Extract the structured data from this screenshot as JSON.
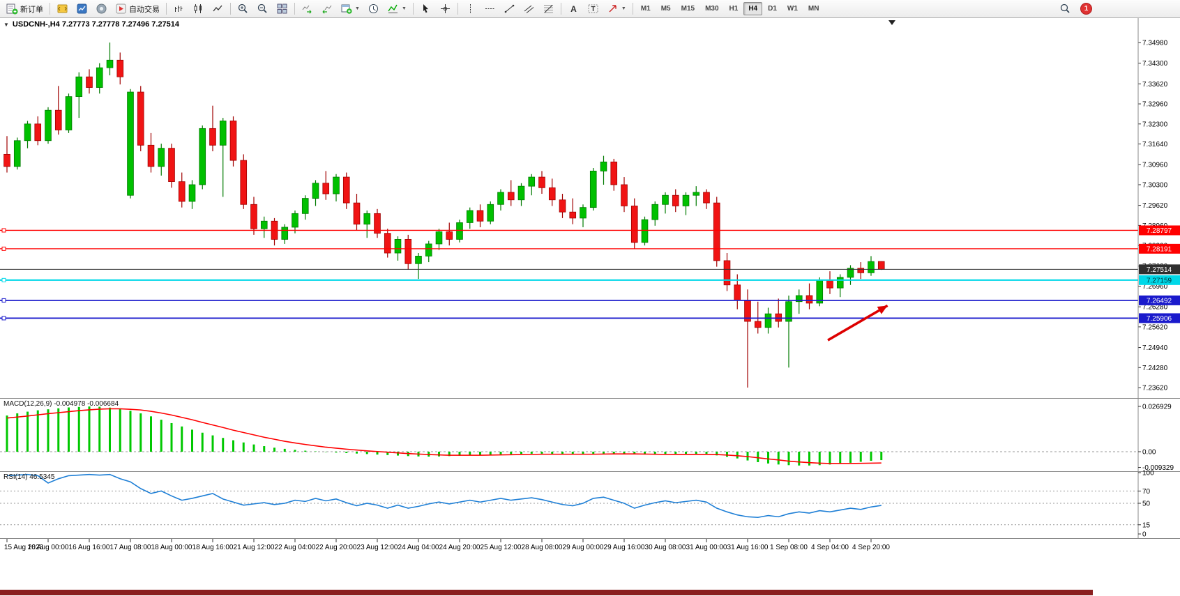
{
  "toolbar": {
    "new_order_label": "新订单",
    "auto_trading_label": "自动交易",
    "periods": [
      "M1",
      "M5",
      "M15",
      "M30",
      "H1",
      "H4",
      "D1",
      "W1",
      "MN"
    ],
    "active_period": "H4",
    "notification_count": "1",
    "icons": [
      "new-order-icon",
      "metaeditor-icon",
      "market-watch-icon",
      "navigator-icon",
      "auto-trading-icon",
      "bar-chart-icon",
      "candlestick-icon",
      "line-chart-icon",
      "zoom-in-icon",
      "zoom-out-icon",
      "tile-windows-icon",
      "auto-scroll-icon",
      "chart-shift-icon",
      "new-chart-icon",
      "clock-icon",
      "indicators-icon",
      "cursor-icon",
      "crosshair-icon",
      "vertical-line-icon",
      "horizontal-line-icon",
      "trendline-icon",
      "channel-icon",
      "fibonacci-icon",
      "text-icon",
      "text-label-icon",
      "arrows-icon",
      "search-icon"
    ]
  },
  "symbol_info": {
    "dropdown_icon": "▼",
    "text": "USDCNH-,H4  7.27773 7.27778 7.27496 7.27514"
  },
  "chart_data": {
    "type": "candlestick",
    "symbol": "USDCNH-",
    "timeframe": "H4",
    "ohlc_display": "7.27773 7.27778 7.27496 7.27514",
    "price_max": 7.356,
    "price_min": 7.233,
    "y_ticks": [
      "7.34980",
      "7.34300",
      "7.33620",
      "7.32960",
      "7.32300",
      "7.31640",
      "7.30960",
      "7.30300",
      "7.29620",
      "7.28960",
      "7.28300",
      "7.27620",
      "7.26960",
      "7.26280",
      "7.25620",
      "7.24940",
      "7.24280",
      "7.23620"
    ],
    "x_labels": [
      "15 Aug 2023",
      "16 Aug 00:00",
      "16 Aug 16:00",
      "17 Aug 08:00",
      "18 Aug 00:00",
      "18 Aug 16:00",
      "21 Aug 12:00",
      "22 Aug 04:00",
      "22 Aug 20:00",
      "23 Aug 12:00",
      "24 Aug 04:00",
      "24 Aug 20:00",
      "25 Aug 12:00",
      "28 Aug 08:00",
      "29 Aug 00:00",
      "29 Aug 16:00",
      "30 Aug 08:00",
      "31 Aug 00:00",
      "31 Aug 16:00",
      "1 Sep 08:00",
      "4 Sep 04:00",
      "4 Sep 20:00"
    ],
    "label_every": 4,
    "colors": {
      "up": "#00C000",
      "up_edge": "#007A00",
      "down": "#F01414",
      "down_edge": "#A00000"
    },
    "candles": [
      [
        7.313,
        7.319,
        7.307,
        7.309
      ],
      [
        7.309,
        7.3185,
        7.308,
        7.3175
      ],
      [
        7.3175,
        7.324,
        7.315,
        7.323
      ],
      [
        7.323,
        7.3255,
        7.316,
        7.3175
      ],
      [
        7.3175,
        7.3285,
        7.3165,
        7.3275
      ],
      [
        7.3275,
        7.3355,
        7.3195,
        7.321
      ],
      [
        7.321,
        7.333,
        7.32,
        7.332
      ],
      [
        7.332,
        7.34,
        7.325,
        7.3385
      ],
      [
        7.3385,
        7.341,
        7.333,
        7.335
      ],
      [
        7.335,
        7.343,
        7.333,
        7.3415
      ],
      [
        7.3415,
        7.3498,
        7.339,
        7.344
      ],
      [
        7.344,
        7.3465,
        7.336,
        7.3385
      ],
      [
        7.2995,
        7.3345,
        7.2985,
        7.3335
      ],
      [
        7.3335,
        7.3355,
        7.314,
        7.316
      ],
      [
        7.316,
        7.32,
        7.307,
        7.309
      ],
      [
        7.309,
        7.3165,
        7.306,
        7.315
      ],
      [
        7.315,
        7.3165,
        7.302,
        7.304
      ],
      [
        7.304,
        7.307,
        7.2955,
        7.2975
      ],
      [
        7.2975,
        7.3045,
        7.295,
        7.303
      ],
      [
        7.303,
        7.3225,
        7.3015,
        7.3215
      ],
      [
        7.3215,
        7.329,
        7.314,
        7.316
      ],
      [
        7.316,
        7.325,
        7.299,
        7.324
      ],
      [
        7.324,
        7.3255,
        7.309,
        7.311
      ],
      [
        7.311,
        7.313,
        7.295,
        7.2965
      ],
      [
        7.2965,
        7.299,
        7.2865,
        7.2885
      ],
      [
        7.2885,
        7.2925,
        7.2855,
        7.291
      ],
      [
        7.291,
        7.292,
        7.283,
        7.285
      ],
      [
        7.285,
        7.29,
        7.2835,
        7.289
      ],
      [
        7.289,
        7.2945,
        7.287,
        7.2935
      ],
      [
        7.2935,
        7.2995,
        7.2915,
        7.2985
      ],
      [
        7.2985,
        7.3045,
        7.296,
        7.3035
      ],
      [
        7.3035,
        7.3075,
        7.298,
        7.3
      ],
      [
        7.3,
        7.3065,
        7.2975,
        7.3055
      ],
      [
        7.3055,
        7.307,
        7.295,
        7.297
      ],
      [
        7.297,
        7.3,
        7.288,
        7.29
      ],
      [
        7.29,
        7.2945,
        7.2855,
        7.2935
      ],
      [
        7.2935,
        7.295,
        7.2855,
        7.287
      ],
      [
        7.287,
        7.2885,
        7.279,
        7.2805
      ],
      [
        7.2805,
        7.286,
        7.278,
        7.285
      ],
      [
        7.285,
        7.2865,
        7.275,
        7.277
      ],
      [
        7.277,
        7.2805,
        7.272,
        7.2795
      ],
      [
        7.2795,
        7.2845,
        7.2775,
        7.2835
      ],
      [
        7.2835,
        7.2885,
        7.2815,
        7.2875
      ],
      [
        7.2875,
        7.2905,
        7.283,
        7.285
      ],
      [
        7.285,
        7.2915,
        7.284,
        7.2905
      ],
      [
        7.2905,
        7.2955,
        7.2885,
        7.2945
      ],
      [
        7.2945,
        7.2965,
        7.289,
        7.291
      ],
      [
        7.291,
        7.2975,
        7.29,
        7.2965
      ],
      [
        7.2965,
        7.3015,
        7.2945,
        7.3005
      ],
      [
        7.3005,
        7.3045,
        7.296,
        7.298
      ],
      [
        7.298,
        7.3035,
        7.296,
        7.3025
      ],
      [
        7.3025,
        7.3065,
        7.2995,
        7.3055
      ],
      [
        7.3055,
        7.3075,
        7.3,
        7.302
      ],
      [
        7.302,
        7.305,
        7.296,
        7.298
      ],
      [
        7.298,
        7.3,
        7.292,
        7.294
      ],
      [
        7.294,
        7.2985,
        7.29,
        7.292
      ],
      [
        7.292,
        7.2965,
        7.289,
        7.2955
      ],
      [
        7.2955,
        7.3085,
        7.2945,
        7.3075
      ],
      [
        7.3075,
        7.3125,
        7.303,
        7.3105
      ],
      [
        7.3105,
        7.3115,
        7.301,
        7.303
      ],
      [
        7.303,
        7.3055,
        7.294,
        7.296
      ],
      [
        7.296,
        7.2985,
        7.282,
        7.284
      ],
      [
        7.284,
        7.2925,
        7.283,
        7.2915
      ],
      [
        7.2915,
        7.2975,
        7.2895,
        7.2965
      ],
      [
        7.2965,
        7.3005,
        7.2935,
        7.2995
      ],
      [
        7.2995,
        7.3015,
        7.294,
        7.296
      ],
      [
        7.296,
        7.3005,
        7.293,
        7.2995
      ],
      [
        7.2995,
        7.3025,
        7.296,
        7.3005
      ],
      [
        7.3005,
        7.3015,
        7.295,
        7.297
      ],
      [
        7.297,
        7.299,
        7.276,
        7.278
      ],
      [
        7.278,
        7.2805,
        7.268,
        7.27
      ],
      [
        7.27,
        7.2735,
        7.262,
        7.265
      ],
      [
        7.265,
        7.2685,
        7.2362,
        7.258
      ],
      [
        7.258,
        7.2645,
        7.254,
        7.256
      ],
      [
        7.256,
        7.2625,
        7.254,
        7.2605
      ],
      [
        7.2605,
        7.2655,
        7.256,
        7.258
      ],
      [
        7.258,
        7.2665,
        7.2428,
        7.2645
      ],
      [
        7.2645,
        7.2685,
        7.2605,
        7.2665
      ],
      [
        7.2665,
        7.2705,
        7.262,
        7.264
      ],
      [
        7.264,
        7.2725,
        7.263,
        7.2715
      ],
      [
        7.2715,
        7.2745,
        7.267,
        7.269
      ],
      [
        7.269,
        7.2735,
        7.266,
        7.2725
      ],
      [
        7.2725,
        7.2765,
        7.27,
        7.2755
      ],
      [
        7.2755,
        7.2775,
        7.272,
        7.274
      ],
      [
        7.274,
        7.2795,
        7.273,
        7.2777
      ],
      [
        7.27773,
        7.27778,
        7.27496,
        7.27514
      ]
    ],
    "levels": [
      {
        "price": 7.28797,
        "label": "7.28797",
        "color": "#FF0000",
        "text_color": "#FFFFFF",
        "width": 1.3
      },
      {
        "price": 7.28191,
        "label": "7.28191",
        "color": "#FF0000",
        "text_color": "#FFFFFF",
        "width": 1.3
      },
      {
        "price": 7.27514,
        "label": "7.27514",
        "color": "#2F2F2F",
        "text_color": "#FFFFFF",
        "width": 1.1,
        "is_bid": true
      },
      {
        "price": 7.27159,
        "label": "7.27159",
        "color": "#00D8E8",
        "text_color": "#00333A",
        "width": 2.2
      },
      {
        "price": 7.26492,
        "label": "7.26492",
        "color": "#1A1ACC",
        "text_color": "#FFFFFF",
        "width": 1.8
      },
      {
        "price": 7.25906,
        "label": "7.25906",
        "color": "#1A1ACC",
        "text_color": "#FFFFFF",
        "width": 1.8
      }
    ],
    "arrow": {
      "i1": 79.8,
      "p1": 7.2518,
      "i2": 85.6,
      "p2": 7.2632,
      "color": "#DD0000"
    },
    "macd": {
      "label": "MACD(12,26,9) -0.004978 -0.006684",
      "hist_color": "#00C800",
      "signal_color": "#FF0000",
      "scale_labels": [
        "0.026929",
        "0.00",
        "-0.009329"
      ],
      "scale_values": [
        0.026929,
        0,
        -0.009329
      ],
      "histogram": [
        0.0215,
        0.0228,
        0.0238,
        0.0246,
        0.0252,
        0.0258,
        0.0263,
        0.0266,
        0.0269,
        0.0267,
        0.0262,
        0.0254,
        0.0243,
        0.0228,
        0.021,
        0.019,
        0.017,
        0.015,
        0.0131,
        0.0113,
        0.0097,
        0.0082,
        0.0068,
        0.0055,
        0.0043,
        0.0033,
        0.0024,
        0.0017,
        0.0011,
        0.0006,
        0.0002,
        -0.0002,
        -0.0005,
        -0.0008,
        -0.0011,
        -0.0014,
        -0.0017,
        -0.002,
        -0.0023,
        -0.0026,
        -0.0028,
        -0.0029,
        -0.0028,
        -0.0026,
        -0.0024,
        -0.0022,
        -0.002,
        -0.0018,
        -0.0016,
        -0.0014,
        -0.0013,
        -0.0012,
        -0.0012,
        -0.0013,
        -0.0014,
        -0.0015,
        -0.0015,
        -0.0014,
        -0.0012,
        -0.0011,
        -0.0012,
        -0.0015,
        -0.0017,
        -0.0018,
        -0.0018,
        -0.0017,
        -0.0016,
        -0.0016,
        -0.0017,
        -0.0022,
        -0.003,
        -0.004,
        -0.0052,
        -0.0062,
        -0.007,
        -0.0076,
        -0.008,
        -0.0082,
        -0.0082,
        -0.008,
        -0.0076,
        -0.0071,
        -0.0066,
        -0.006,
        -0.0054,
        -0.005
      ],
      "signal": [
        0.02,
        0.0206,
        0.0212,
        0.0219,
        0.0226,
        0.0232,
        0.0238,
        0.0244,
        0.0249,
        0.0253,
        0.0255,
        0.0255,
        0.0252,
        0.0248,
        0.024,
        0.023,
        0.0218,
        0.0204,
        0.019,
        0.0174,
        0.0159,
        0.0144,
        0.0128,
        0.0114,
        0.01,
        0.0086,
        0.0074,
        0.0062,
        0.0052,
        0.0043,
        0.0035,
        0.0027,
        0.0021,
        0.0015,
        0.001,
        0.0005,
        0.0001,
        -0.0003,
        -0.0007,
        -0.0011,
        -0.0014,
        -0.0017,
        -0.0019,
        -0.0021,
        -0.0021,
        -0.0021,
        -0.0021,
        -0.002,
        -0.0019,
        -0.0018,
        -0.0017,
        -0.0016,
        -0.0015,
        -0.0015,
        -0.0015,
        -0.0015,
        -0.0015,
        -0.0015,
        -0.0014,
        -0.0013,
        -0.0013,
        -0.0013,
        -0.0014,
        -0.0015,
        -0.0016,
        -0.0016,
        -0.0016,
        -0.0016,
        -0.0016,
        -0.0017,
        -0.002,
        -0.0024,
        -0.0029,
        -0.0036,
        -0.0043,
        -0.0049,
        -0.0056,
        -0.0061,
        -0.0065,
        -0.0068,
        -0.007,
        -0.007,
        -0.007,
        -0.0069,
        -0.0068,
        -0.0067
      ]
    },
    "rsi": {
      "label": "RSI(14) 46.5345",
      "color": "#1E7FD6",
      "scale_labels": [
        "100",
        "70",
        "50",
        "15",
        "0"
      ],
      "scale_values": [
        100,
        70,
        50,
        15,
        0
      ],
      "levels_dashed": [
        70,
        50,
        15
      ],
      "values": [
        95,
        96,
        97,
        95,
        83,
        90,
        95,
        96,
        97,
        96,
        97,
        90,
        85,
        74,
        66,
        70,
        62,
        55,
        58,
        62,
        66,
        57,
        52,
        47,
        49,
        51,
        48,
        50,
        55,
        53,
        58,
        54,
        57,
        51,
        46,
        50,
        47,
        42,
        47,
        42,
        45,
        49,
        52,
        49,
        52,
        55,
        52,
        55,
        58,
        55,
        57,
        59,
        56,
        52,
        48,
        46,
        50,
        58,
        60,
        55,
        50,
        42,
        47,
        51,
        54,
        51,
        53,
        55,
        52,
        42,
        36,
        31,
        28,
        27,
        30,
        28,
        33,
        36,
        34,
        38,
        36,
        39,
        42,
        40,
        44,
        46.5
      ]
    }
  }
}
